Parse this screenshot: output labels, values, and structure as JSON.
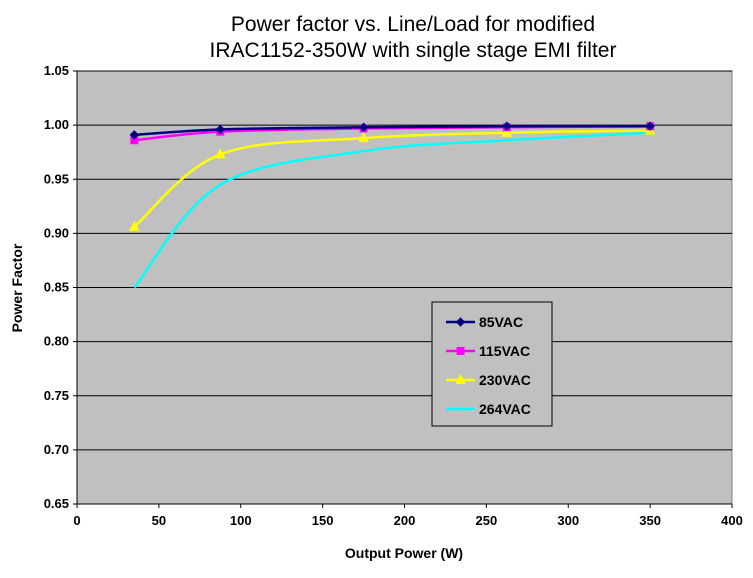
{
  "chart_data": {
    "type": "line",
    "title": "Power factor vs. Line/Load for modified",
    "subtitle": "IRAC1152-350W with single stage EMI filter",
    "xlabel": "Output Power (W)",
    "ylabel": "Power Factor",
    "xlim": [
      0,
      400
    ],
    "ylim": [
      0.65,
      1.05
    ],
    "xticks": [
      "0",
      "50",
      "100",
      "150",
      "200",
      "250",
      "300",
      "350",
      "400"
    ],
    "yticks": [
      "1.05",
      "1.00",
      "0.95",
      "0.90",
      "0.85",
      "0.80",
      "0.75",
      "0.70",
      "0.65"
    ],
    "grid": true,
    "plot_background": "#c0c0c0",
    "legend_position": "lower-right",
    "series": [
      {
        "name": "85VAC",
        "color": "#000080",
        "marker": "diamond",
        "x": [
          35,
          87.5,
          175,
          262.5,
          350
        ],
        "y": [
          0.991,
          0.996,
          0.998,
          0.999,
          0.999
        ]
      },
      {
        "name": "115VAC",
        "color": "#ff00ff",
        "marker": "square",
        "x": [
          35,
          87.5,
          175,
          262.5,
          350
        ],
        "y": [
          0.986,
          0.994,
          0.997,
          0.998,
          0.999
        ]
      },
      {
        "name": "230VAC",
        "color": "#ffff00",
        "marker": "triangle",
        "x": [
          35,
          87.5,
          175,
          262.5,
          350
        ],
        "y": [
          0.906,
          0.973,
          0.988,
          0.993,
          0.995
        ]
      },
      {
        "name": "264VAC",
        "color": "#00ffff",
        "marker": "none",
        "x": [
          35,
          87.5,
          175,
          262.5,
          350
        ],
        "y": [
          0.85,
          0.945,
          0.976,
          0.986,
          0.993
        ]
      }
    ]
  }
}
